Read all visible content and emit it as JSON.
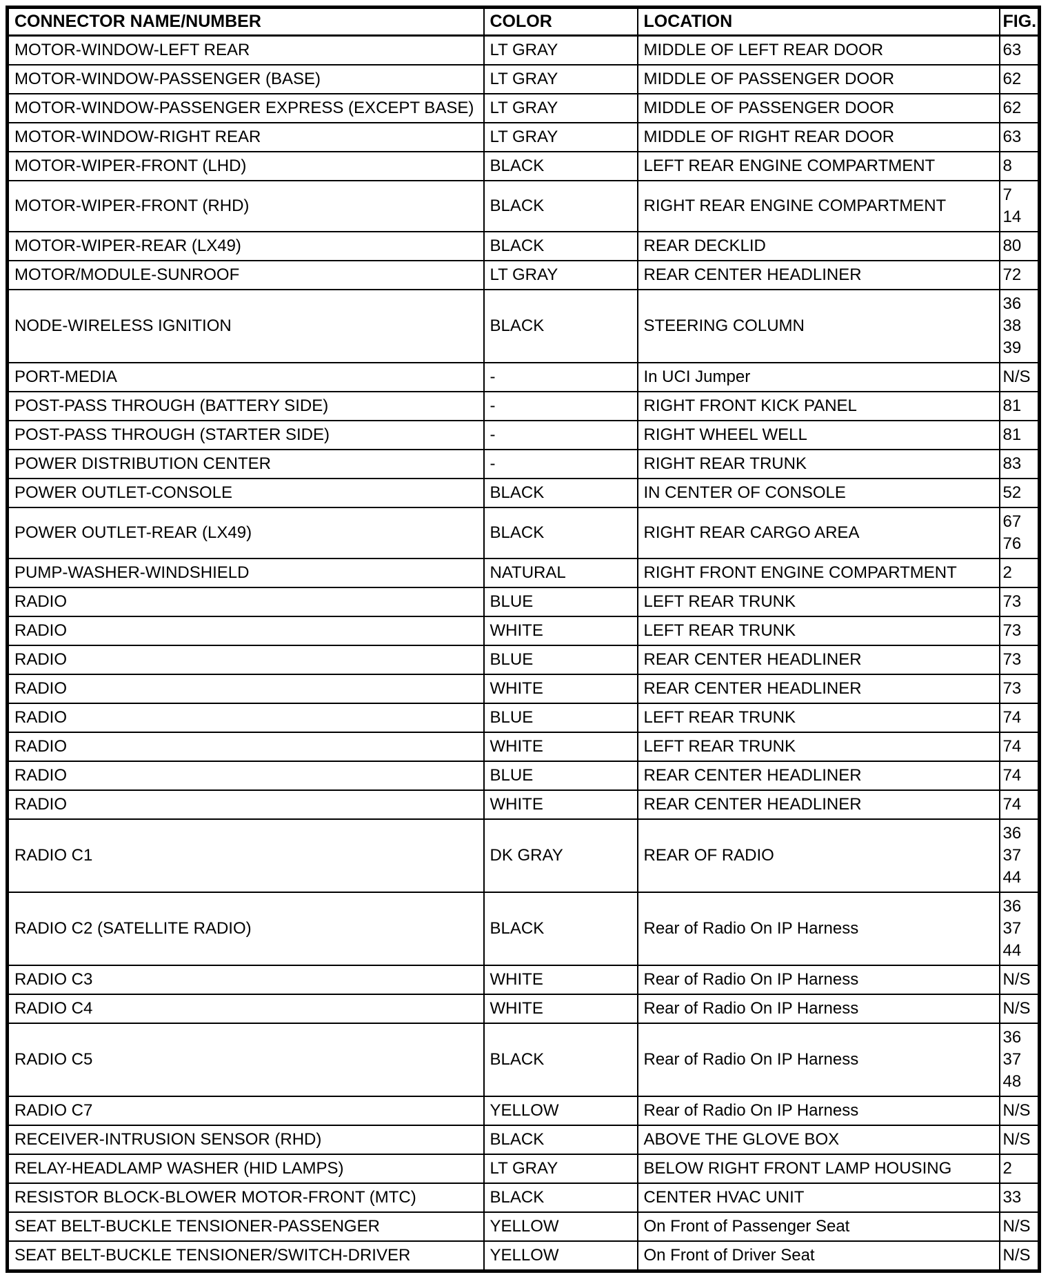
{
  "table": {
    "columns": {
      "name": "CONNECTOR NAME/NUMBER",
      "color": "COLOR",
      "location": "LOCATION",
      "fig": "FIG."
    },
    "rows": [
      {
        "name": "MOTOR-WINDOW-LEFT REAR",
        "color": "LT GRAY",
        "location": "MIDDLE OF LEFT REAR DOOR",
        "fig": [
          "63"
        ]
      },
      {
        "name": "MOTOR-WINDOW-PASSENGER (BASE)",
        "color": "LT GRAY",
        "location": "MIDDLE OF PASSENGER DOOR",
        "fig": [
          "62"
        ]
      },
      {
        "name": "MOTOR-WINDOW-PASSENGER EXPRESS (EXCEPT BASE)",
        "color": "LT GRAY",
        "location": "MIDDLE OF PASSENGER DOOR",
        "fig": [
          "62"
        ]
      },
      {
        "name": "MOTOR-WINDOW-RIGHT REAR",
        "color": "LT GRAY",
        "location": "MIDDLE OF RIGHT REAR DOOR",
        "fig": [
          "63"
        ]
      },
      {
        "name": "MOTOR-WIPER-FRONT (LHD)",
        "color": "BLACK",
        "location": "LEFT REAR ENGINE COMPARTMENT",
        "fig": [
          "8"
        ]
      },
      {
        "name": "MOTOR-WIPER-FRONT (RHD)",
        "color": "BLACK",
        "location": "RIGHT REAR ENGINE COMPARTMENT",
        "fig": [
          "7",
          "14"
        ]
      },
      {
        "name": "MOTOR-WIPER-REAR (LX49)",
        "color": "BLACK",
        "location": "REAR DECKLID",
        "fig": [
          "80"
        ]
      },
      {
        "name": "MOTOR/MODULE-SUNROOF",
        "color": "LT GRAY",
        "location": "REAR CENTER HEADLINER",
        "fig": [
          "72"
        ]
      },
      {
        "name": "NODE-WIRELESS IGNITION",
        "color": "BLACK",
        "location": "STEERING COLUMN",
        "fig": [
          "36",
          "38",
          "39"
        ]
      },
      {
        "name": "PORT-MEDIA",
        "color": "-",
        "location": "In UCI Jumper",
        "fig": [
          "N/S"
        ]
      },
      {
        "name": "POST-PASS THROUGH (BATTERY SIDE)",
        "color": "-",
        "location": "RIGHT FRONT KICK PANEL",
        "fig": [
          "81"
        ]
      },
      {
        "name": "POST-PASS THROUGH (STARTER SIDE)",
        "color": "-",
        "location": "RIGHT WHEEL WELL",
        "fig": [
          "81"
        ]
      },
      {
        "name": "POWER DISTRIBUTION CENTER",
        "color": "-",
        "location": "RIGHT REAR TRUNK",
        "fig": [
          "83"
        ]
      },
      {
        "name": "POWER OUTLET-CONSOLE",
        "color": "BLACK",
        "location": "IN CENTER OF CONSOLE",
        "fig": [
          "52"
        ]
      },
      {
        "name": "POWER OUTLET-REAR (LX49)",
        "color": "BLACK",
        "location": "RIGHT REAR CARGO AREA",
        "fig": [
          "67",
          "76"
        ]
      },
      {
        "name": "PUMP-WASHER-WINDSHIELD",
        "color": "NATURAL",
        "location": "RIGHT FRONT ENGINE COMPARTMENT",
        "fig": [
          "2"
        ]
      },
      {
        "name": "RADIO",
        "color": "BLUE",
        "location": "LEFT REAR TRUNK",
        "fig": [
          "73"
        ]
      },
      {
        "name": "RADIO",
        "color": "WHITE",
        "location": "LEFT REAR TRUNK",
        "fig": [
          "73"
        ]
      },
      {
        "name": "RADIO",
        "color": "BLUE",
        "location": "REAR CENTER HEADLINER",
        "fig": [
          "73"
        ]
      },
      {
        "name": "RADIO",
        "color": "WHITE",
        "location": "REAR CENTER HEADLINER",
        "fig": [
          "73"
        ]
      },
      {
        "name": "RADIO",
        "color": "BLUE",
        "location": "LEFT REAR TRUNK",
        "fig": [
          "74"
        ]
      },
      {
        "name": "RADIO",
        "color": "WHITE",
        "location": "LEFT REAR TRUNK",
        "fig": [
          "74"
        ]
      },
      {
        "name": "RADIO",
        "color": "BLUE",
        "location": "REAR CENTER HEADLINER",
        "fig": [
          "74"
        ]
      },
      {
        "name": "RADIO",
        "color": "WHITE",
        "location": "REAR CENTER HEADLINER",
        "fig": [
          "74"
        ]
      },
      {
        "name": "RADIO C1",
        "color": "DK GRAY",
        "location": "REAR OF RADIO",
        "fig": [
          "36",
          "37",
          "44"
        ]
      },
      {
        "name": "RADIO C2 (SATELLITE RADIO)",
        "color": "BLACK",
        "location": "Rear of Radio On IP Harness",
        "fig": [
          "36",
          "37",
          "44"
        ]
      },
      {
        "name": "RADIO C3",
        "color": "WHITE",
        "location": "Rear of Radio On IP Harness",
        "fig": [
          "N/S"
        ]
      },
      {
        "name": "RADIO C4",
        "color": "WHITE",
        "location": "Rear of Radio On IP Harness",
        "fig": [
          "N/S"
        ]
      },
      {
        "name": "RADIO C5",
        "color": "BLACK",
        "location": "Rear of Radio On IP Harness",
        "fig": [
          "36",
          "37",
          "48"
        ]
      },
      {
        "name": "RADIO C7",
        "color": "YELLOW",
        "location": "Rear of Radio On IP Harness",
        "fig": [
          "N/S"
        ]
      },
      {
        "name": "RECEIVER-INTRUSION SENSOR (RHD)",
        "color": "BLACK",
        "location": "ABOVE THE GLOVE BOX",
        "fig": [
          "N/S"
        ]
      },
      {
        "name": "RELAY-HEADLAMP WASHER (HID LAMPS)",
        "color": "LT GRAY",
        "location": "BELOW RIGHT FRONT LAMP HOUSING",
        "fig": [
          "2"
        ]
      },
      {
        "name": "RESISTOR BLOCK-BLOWER MOTOR-FRONT (MTC)",
        "color": "BLACK",
        "location": "CENTER HVAC UNIT",
        "fig": [
          "33"
        ]
      },
      {
        "name": "SEAT BELT-BUCKLE TENSIONER-PASSENGER",
        "color": "YELLOW",
        "location": "On Front of Passenger Seat",
        "fig": [
          "N/S"
        ]
      },
      {
        "name": "SEAT BELT-BUCKLE TENSIONER/SWITCH-DRIVER",
        "color": "YELLOW",
        "location": "On Front of Driver Seat",
        "fig": [
          "N/S"
        ]
      }
    ]
  }
}
